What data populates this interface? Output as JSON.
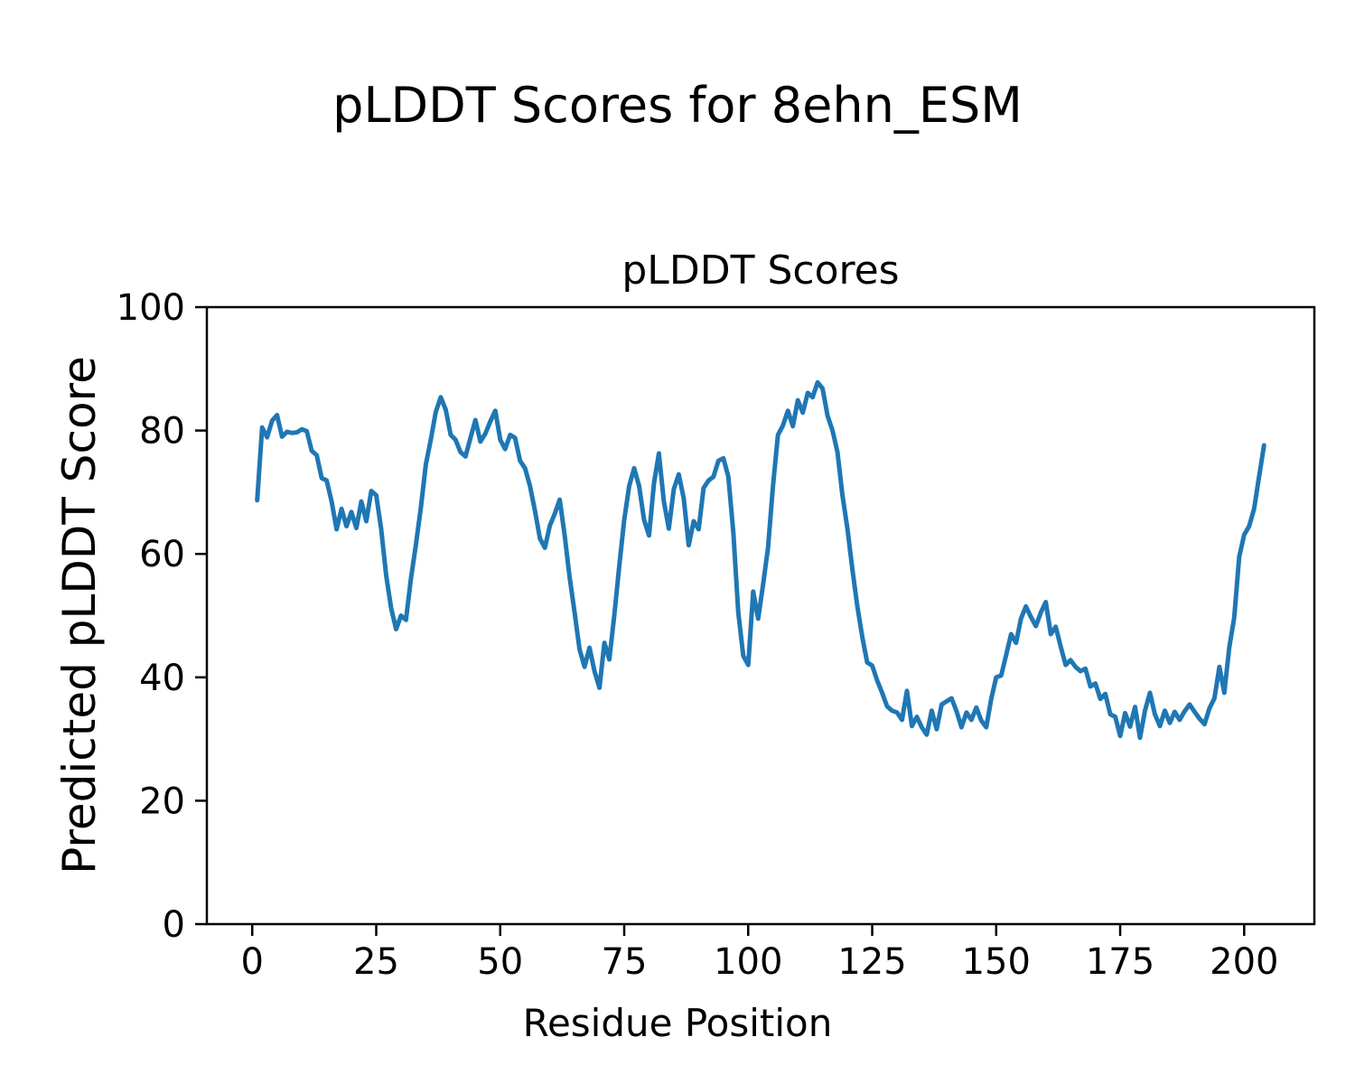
{
  "figure": {
    "suptitle": "pLDDT Scores for 8ehn_ESM",
    "background": "#ffffff"
  },
  "chart_data": {
    "type": "line",
    "title": "pLDDT Scores",
    "xlabel": "Residue Position",
    "ylabel": "Predicted pLDDT Score",
    "xlim": [
      -9.15,
      214.15
    ],
    "ylim": [
      0,
      100
    ],
    "xticks": [
      0,
      25,
      50,
      75,
      100,
      125,
      150,
      175,
      200
    ],
    "yticks": [
      0,
      20,
      40,
      60,
      80,
      100
    ],
    "grid": false,
    "legend": "none",
    "frame_color": "#000000",
    "series": [
      {
        "name": "pLDDT",
        "color": "#1f77b4",
        "line_width": 5,
        "x_start": 1,
        "x_step": 1,
        "y": [
          68.7,
          80.5,
          78.9,
          81.6,
          82.5,
          79.0,
          79.8,
          79.6,
          79.7,
          80.2,
          79.9,
          76.7,
          76.0,
          72.3,
          71.9,
          68.5,
          64.0,
          67.3,
          64.5,
          66.8,
          64.2,
          68.5,
          65.3,
          70.2,
          69.5,
          64.0,
          56.5,
          51.2,
          47.8,
          50.0,
          49.3,
          56.0,
          61.5,
          67.5,
          74.5,
          78.5,
          83.0,
          85.4,
          83.4,
          79.3,
          78.5,
          76.5,
          75.8,
          78.8,
          81.7,
          78.2,
          79.5,
          81.5,
          83.2,
          78.5,
          77.0,
          79.3,
          78.8,
          75.1,
          73.9,
          71.0,
          67.0,
          62.5,
          61.0,
          64.6,
          66.5,
          68.8,
          63.0,
          56.2,
          50.5,
          44.5,
          41.7,
          44.8,
          41.0,
          38.3,
          45.6,
          42.9,
          50.0,
          58.0,
          65.5,
          71.0,
          73.9,
          71.0,
          65.5,
          63.0,
          71.5,
          76.3,
          68.5,
          64.1,
          70.5,
          72.9,
          69.0,
          61.4,
          65.3,
          64.0,
          70.7,
          71.9,
          72.5,
          75.1,
          75.5,
          72.5,
          63.5,
          50.5,
          43.5,
          42.0,
          53.9,
          49.5,
          55.0,
          61.0,
          71.0,
          79.3,
          80.8,
          83.2,
          80.7,
          84.9,
          82.9,
          86.1,
          85.4,
          87.8,
          86.8,
          82.4,
          80.0,
          76.5,
          69.5,
          64.1,
          57.5,
          51.5,
          46.5,
          42.4,
          41.9,
          39.5,
          37.5,
          35.3,
          34.6,
          34.3,
          33.1,
          37.8,
          32.1,
          33.6,
          31.9,
          30.7,
          34.6,
          31.6,
          35.6,
          36.1,
          36.6,
          34.5,
          31.9,
          34.3,
          33.1,
          35.1,
          33.0,
          31.9,
          36.5,
          40.0,
          40.3,
          43.6,
          47.0,
          45.6,
          49.5,
          51.5,
          49.8,
          48.3,
          50.5,
          52.2,
          47.0,
          48.2,
          45.0,
          42.0,
          42.8,
          41.7,
          41.0,
          41.4,
          38.5,
          39.0,
          36.5,
          37.3,
          34.0,
          33.6,
          30.5,
          34.2,
          32.0,
          35.2,
          30.2,
          34.6,
          37.5,
          34.0,
          32.1,
          34.6,
          32.6,
          34.4,
          33.1,
          34.5,
          35.6,
          34.4,
          33.3,
          32.4,
          35.0,
          36.6,
          41.7,
          37.5,
          44.8,
          49.7,
          59.5,
          63.1,
          64.5,
          67.3,
          72.5,
          77.6
        ]
      }
    ]
  }
}
